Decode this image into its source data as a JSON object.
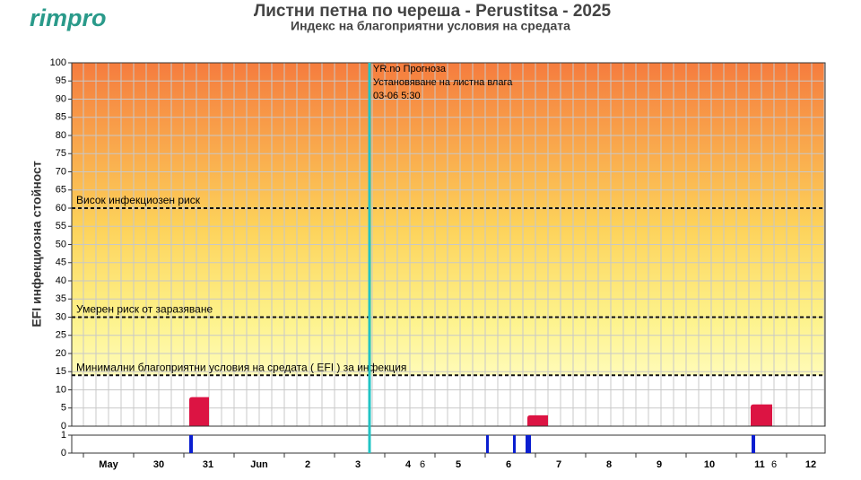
{
  "logo": "rimpro",
  "chart_data": {
    "type": "area",
    "title": "Листни петна по череша - Perustitsa - 2025",
    "subtitle": "Индекс на благоприятни условия на средата",
    "ylabel": "EFI инфекциозна стойност",
    "ylim": [
      0,
      100
    ],
    "yticks": [
      0,
      5,
      10,
      15,
      20,
      25,
      30,
      35,
      40,
      45,
      50,
      55,
      60,
      65,
      70,
      75,
      80,
      85,
      90,
      95,
      100
    ],
    "grid": true,
    "thresholds": [
      {
        "value": 60,
        "label": "Висок инфекциозен риск"
      },
      {
        "value": 30,
        "label": "Умерен риск от заразяване"
      },
      {
        "value": 14,
        "label": "Минимални благоприятни условия на средата ( EFI ) за инфекция"
      }
    ],
    "forecast_annotation": [
      "YR.no Прогноза",
      "Установяване на листна влага",
      "03-06 5:30"
    ],
    "forecast_color": "#22c4c4",
    "series": [
      {
        "name": "EFI",
        "color": "#dc1443",
        "values": [
          8,
          3,
          6
        ]
      }
    ],
    "y2lim": [
      0,
      1
    ],
    "y2ticks": [
      0,
      1
    ],
    "wetness": {
      "color": "#0a1ed0",
      "values": [
        1,
        1,
        1,
        1,
        1
      ]
    },
    "xlabels": [
      "May",
      "30",
      "31",
      "Jun",
      "2",
      "3",
      "4",
      "6",
      "5",
      "6",
      "7",
      "8",
      "9",
      "10",
      "11",
      "6",
      "12"
    ]
  }
}
